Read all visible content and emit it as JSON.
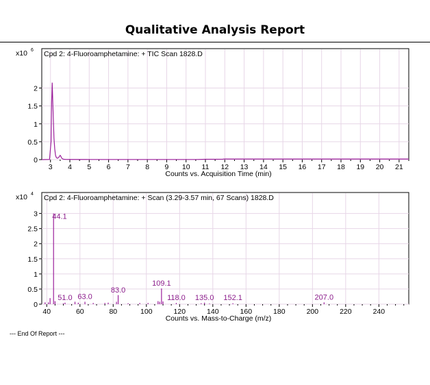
{
  "report": {
    "title": "Qualitative Analysis Report",
    "footer": "--- End Of Report ---"
  },
  "colors": {
    "trace": "#9B1F9B",
    "grid": "#E7D6E7",
    "frame": "#000000"
  },
  "chart_data": [
    {
      "type": "line",
      "title": "Cpd 2: 4-Fluoroamphetamine: + TIC Scan 1828.D",
      "xlabel": "Counts vs. Acquisition Time (min)",
      "ylabel": "",
      "y_multiplier": {
        "base": "x10",
        "exp": "6"
      },
      "xlim": [
        2.55,
        21.5
      ],
      "ylim": [
        0,
        2.45
      ],
      "x_ticks": [
        3,
        4,
        5,
        6,
        7,
        8,
        9,
        10,
        11,
        12,
        13,
        14,
        15,
        16,
        17,
        18,
        19,
        20,
        21
      ],
      "x_ticks_minor_every": 0.5,
      "y_ticks": [
        0,
        0.5,
        1,
        1.5,
        2
      ],
      "y_tick_labels": [
        "0",
        "0.5",
        "1",
        "1.5",
        "2"
      ],
      "grid": true,
      "series": [
        {
          "x": [
            2.55,
            2.95,
            3.03,
            3.06,
            3.09,
            3.12,
            3.15,
            3.18,
            3.22,
            3.26,
            3.3,
            3.35,
            3.4,
            3.45,
            3.5,
            3.53,
            3.56,
            3.6,
            3.65,
            3.7,
            3.8,
            4.0,
            5.0,
            7.0,
            9.0,
            10.5,
            11.0,
            11.9,
            12.0,
            12.1,
            13.0,
            15.0,
            17.0,
            19.0,
            21.5
          ],
          "y": [
            0.0,
            0.005,
            0.5,
            1.6,
            2.15,
            1.6,
            1.1,
            0.6,
            0.3,
            0.12,
            0.06,
            0.04,
            0.05,
            0.08,
            0.12,
            0.1,
            0.06,
            0.03,
            0.015,
            0.01,
            0.006,
            0.005,
            0.004,
            0.004,
            0.004,
            0.004,
            0.01,
            0.012,
            0.02,
            0.016,
            0.016,
            0.016,
            0.016,
            0.016,
            0.016
          ]
        }
      ]
    },
    {
      "type": "bar",
      "title": "Cpd 2: 4-Fluoroamphetamine: + Scan (3.29-3.57 min, 67 Scans) 1828.D",
      "xlabel": "Counts vs. Mass-to-Charge (m/z)",
      "ylabel": "",
      "y_multiplier": {
        "base": "x10",
        "exp": "4"
      },
      "xlim": [
        37,
        258
      ],
      "ylim": [
        0,
        3.15
      ],
      "x_ticks": [
        40,
        60,
        80,
        100,
        120,
        140,
        160,
        180,
        200,
        220,
        240
      ],
      "x_ticks_minor_every": 5,
      "y_ticks": [
        0,
        0.5,
        1,
        1.5,
        2,
        2.5,
        3
      ],
      "y_tick_labels": [
        "0",
        "0.5",
        "1",
        "1.5",
        "2",
        "2.5",
        "3"
      ],
      "grid": true,
      "peaks": [
        {
          "mz": 39.0,
          "value": 0.06
        },
        {
          "mz": 41.0,
          "value": 0.06
        },
        {
          "mz": 42.0,
          "value": 0.2
        },
        {
          "mz": 44.1,
          "value": 3.0,
          "label": "44.1"
        },
        {
          "mz": 45.0,
          "value": 0.1
        },
        {
          "mz": 50.0,
          "value": 0.03
        },
        {
          "mz": 51.0,
          "value": 0.05,
          "label": "51.0"
        },
        {
          "mz": 57.0,
          "value": 0.08
        },
        {
          "mz": 59.0,
          "value": 0.05
        },
        {
          "mz": 63.0,
          "value": 0.08,
          "label": "63.0"
        },
        {
          "mz": 68.0,
          "value": 0.04
        },
        {
          "mz": 75.0,
          "value": 0.04
        },
        {
          "mz": 77.0,
          "value": 0.05
        },
        {
          "mz": 82.0,
          "value": 0.08
        },
        {
          "mz": 83.0,
          "value": 0.3,
          "label": "83.0"
        },
        {
          "mz": 89.0,
          "value": 0.03
        },
        {
          "mz": 96.0,
          "value": 0.04
        },
        {
          "mz": 101.0,
          "value": 0.04
        },
        {
          "mz": 107.0,
          "value": 0.1
        },
        {
          "mz": 108.0,
          "value": 0.08
        },
        {
          "mz": 109.1,
          "value": 0.52,
          "label": "109.1"
        },
        {
          "mz": 110.0,
          "value": 0.09
        },
        {
          "mz": 118.0,
          "value": 0.04,
          "label": "118.0"
        },
        {
          "mz": 133.0,
          "value": 0.03
        },
        {
          "mz": 135.0,
          "value": 0.05,
          "label": "135.0"
        },
        {
          "mz": 138.0,
          "value": 0.02
        },
        {
          "mz": 152.1,
          "value": 0.03,
          "label": "152.1"
        },
        {
          "mz": 207.0,
          "value": 0.06,
          "label": "207.0"
        }
      ]
    }
  ]
}
